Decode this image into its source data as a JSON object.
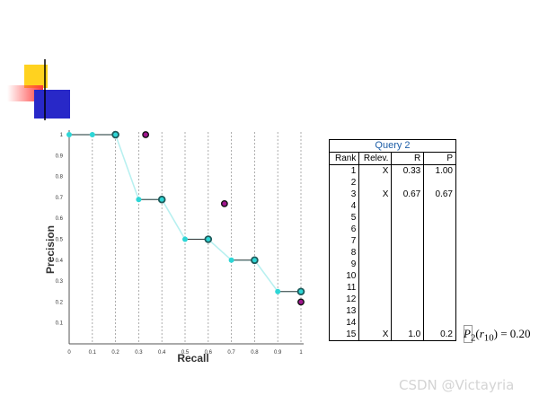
{
  "chart_data": {
    "type": "line",
    "xlabel": "Recall",
    "ylabel": "Precision",
    "xlim": [
      0,
      1
    ],
    "ylim": [
      0,
      1
    ],
    "x_ticks": [
      "0",
      "0.1",
      "0.2",
      "0.3",
      "0.4",
      "0.5",
      "0.6",
      "0.7",
      "0.8",
      "0.9",
      "1"
    ],
    "y_ticks": [
      "0.1",
      "0.2",
      "0.3",
      "0.4",
      "0.5",
      "0.6",
      "0.7",
      "0.8",
      "0.9",
      "1"
    ],
    "grid": "vertical dotted",
    "series": [
      {
        "style": "interpolated",
        "color": "#2ed6d6",
        "x": [
          0,
          0.1,
          0.2,
          0.3,
          0.4,
          0.5,
          0.6,
          0.7,
          0.8,
          0.9,
          1.0
        ],
        "y": [
          1.0,
          1.0,
          1.0,
          0.69,
          0.69,
          0.5,
          0.5,
          0.4,
          0.4,
          0.25,
          0.25
        ]
      },
      {
        "style": "observed",
        "color": "#a0168e",
        "x": [
          0.33,
          0.67,
          1.0
        ],
        "y": [
          1.0,
          0.67,
          0.2
        ]
      }
    ],
    "step_pairs": [
      [
        0,
        0.2,
        1.0
      ],
      [
        0.3,
        0.4,
        0.69
      ],
      [
        0.5,
        0.6,
        0.5
      ],
      [
        0.7,
        0.8,
        0.4
      ],
      [
        0.9,
        1.0,
        0.25
      ]
    ],
    "ringed_points": [
      [
        0.2,
        1.0
      ],
      [
        0.4,
        0.69
      ],
      [
        0.6,
        0.5
      ],
      [
        0.8,
        0.4
      ],
      [
        1.0,
        0.25
      ]
    ]
  },
  "table": {
    "title": "Query 2",
    "headers": [
      "Rank",
      "Relev.",
      "R",
      "P"
    ],
    "rows": [
      [
        "1",
        "X",
        "0.33",
        "1.00"
      ],
      [
        "2",
        "",
        "",
        ""
      ],
      [
        "3",
        "X",
        "0.67",
        "0.67"
      ],
      [
        "4",
        "",
        "",
        ""
      ],
      [
        "5",
        "",
        "",
        ""
      ],
      [
        "6",
        "",
        "",
        ""
      ],
      [
        "7",
        "",
        "",
        ""
      ],
      [
        "8",
        "",
        "",
        ""
      ],
      [
        "9",
        "",
        "",
        ""
      ],
      [
        "10",
        "",
        "",
        ""
      ],
      [
        "11",
        "",
        "",
        ""
      ],
      [
        "12",
        "",
        "",
        ""
      ],
      [
        "13",
        "",
        "",
        ""
      ],
      [
        "14",
        "",
        "",
        ""
      ],
      [
        "15",
        "X",
        "1.0",
        "0.2"
      ]
    ]
  },
  "formula": {
    "text": "P2(r10) = 0.20",
    "symbol": "P",
    "sub": "2",
    "arg": "r",
    "arg_sub": "10",
    "value": "= 0.20"
  },
  "watermark": "CSDN @Victayria",
  "colors": {
    "interpolated": "#2ed6d6",
    "observed": "#a0168e",
    "ring": "#1e5a5a",
    "table_title": "#1f5fa8",
    "deco_yellow": "#ffd21f",
    "deco_red": "#ff3a3a",
    "deco_blue": "#2828c8"
  }
}
